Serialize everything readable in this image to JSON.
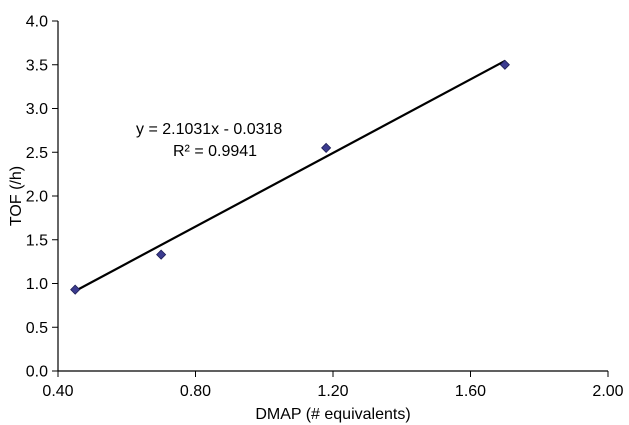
{
  "chart_data": {
    "type": "scatter",
    "xlabel": "DMAP (# equivalents)",
    "ylabel": "TOF (/h)",
    "xlim": [
      0.4,
      2.0
    ],
    "ylim": [
      0.0,
      4.0
    ],
    "x_ticks": [
      "0.40",
      "0.80",
      "1.20",
      "1.60",
      "2.00"
    ],
    "y_ticks": [
      "0.0",
      "0.5",
      "1.0",
      "1.5",
      "2.0",
      "2.5",
      "3.0",
      "3.5",
      "4.0"
    ],
    "grid": false,
    "legend": "none",
    "series": [
      {
        "points": [
          {
            "x": 0.45,
            "y": 0.93
          },
          {
            "x": 0.7,
            "y": 1.33
          },
          {
            "x": 1.18,
            "y": 2.55
          },
          {
            "x": 1.7,
            "y": 3.5
          }
        ],
        "marker": "diamond",
        "color": "#3b3b8f"
      }
    ],
    "trendline": {
      "type": "linear",
      "slope": 2.1031,
      "intercept": -0.0318,
      "x_range": [
        0.45,
        1.7
      ],
      "color": "#000000"
    },
    "annotations": {
      "equation": "y = 2.1031x - 0.0318",
      "r_squared": "R² = 0.9941"
    }
  }
}
